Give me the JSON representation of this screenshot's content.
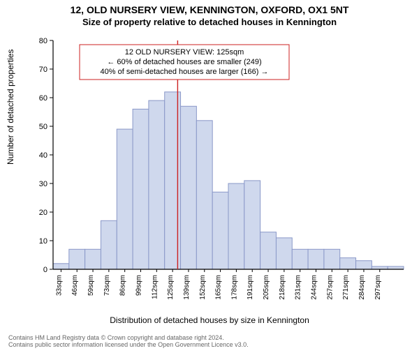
{
  "titles": {
    "line1": "12, OLD NURSERY VIEW, KENNINGTON, OXFORD, OX1 5NT",
    "line2": "Size of property relative to detached houses in Kennington"
  },
  "ylabel": "Number of detached properties",
  "xlabel": "Distribution of detached houses by size in Kennington",
  "footer": {
    "line1": "Contains HM Land Registry data © Crown copyright and database right 2024.",
    "line2": "Contains public sector information licensed under the Open Government Licence v3.0."
  },
  "annotation": {
    "lines": [
      "12 OLD NURSERY VIEW: 125sqm",
      "← 60% of detached houses are smaller (249)",
      "40% of semi-detached houses are larger (166) →"
    ],
    "border_color": "#cc2222",
    "text_color": "#000000",
    "fontsize": 11
  },
  "chart": {
    "type": "histogram",
    "bar_fill": "#cfd8ed",
    "bar_stroke": "#8a98c8",
    "axis_color": "#000000",
    "ref_line_color": "#cc2222",
    "ref_line_value": 125,
    "background": "#ffffff",
    "ylim": [
      0,
      80
    ],
    "ytick_step": 10,
    "xtick_fontsize": 10,
    "ytick_fontsize": 11,
    "categories": [
      "33sqm",
      "46sqm",
      "59sqm",
      "73sqm",
      "86sqm",
      "99sqm",
      "112sqm",
      "125sqm",
      "139sqm",
      "152sqm",
      "165sqm",
      "178sqm",
      "191sqm",
      "205sqm",
      "218sqm",
      "231sqm",
      "244sqm",
      "257sqm",
      "271sqm",
      "284sqm",
      "297sqm"
    ],
    "values": [
      2,
      7,
      7,
      17,
      49,
      56,
      59,
      62,
      57,
      52,
      27,
      30,
      31,
      13,
      11,
      7,
      7,
      7,
      4,
      3,
      1,
      1
    ]
  }
}
